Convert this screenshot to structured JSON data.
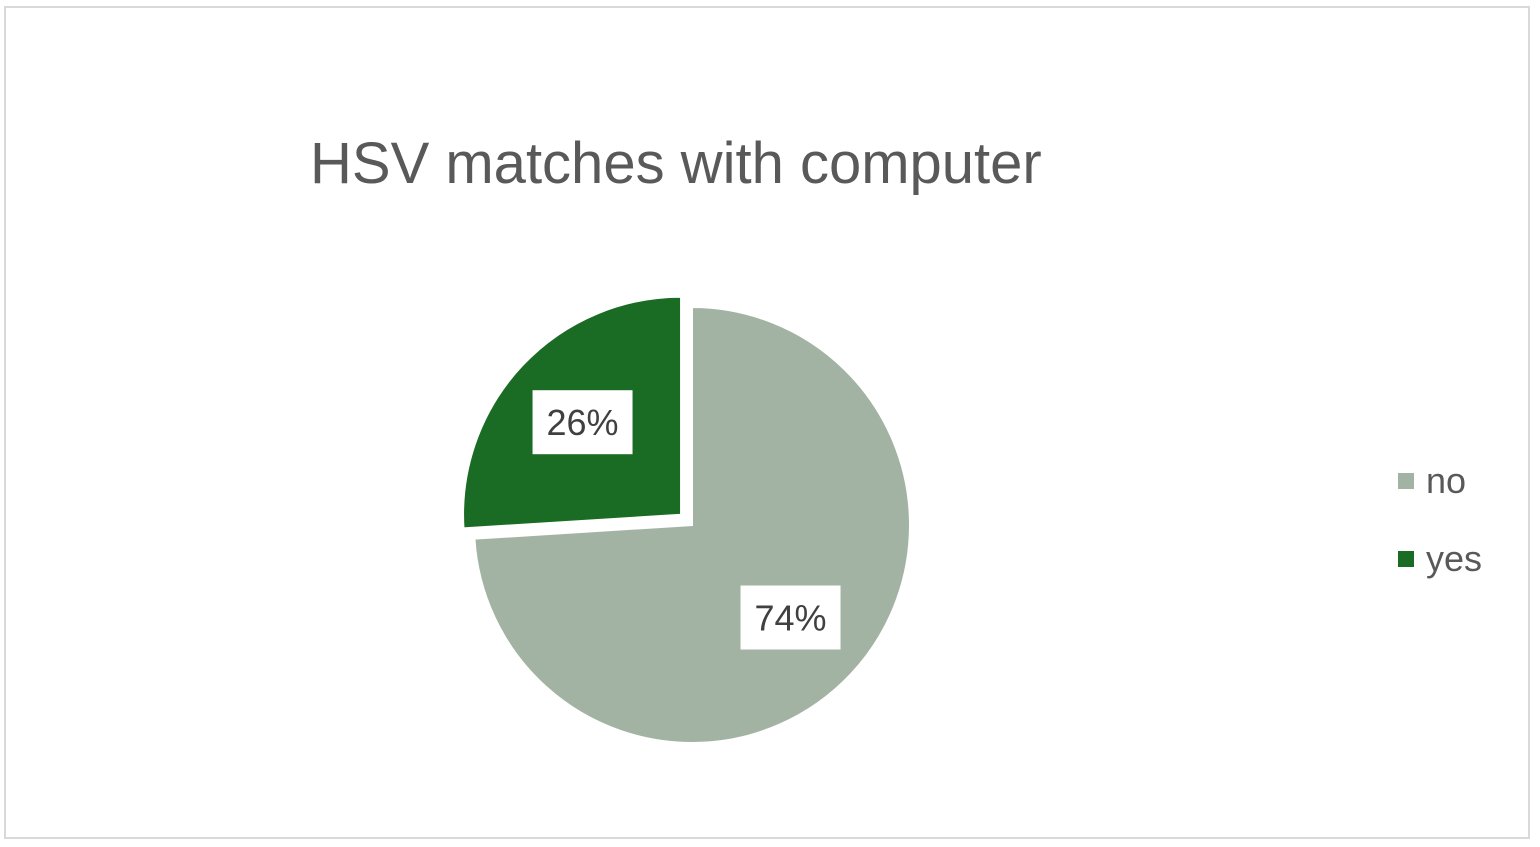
{
  "chart_data": {
    "type": "pie",
    "title": "HSV matches with computer",
    "categories": [
      "no",
      "yes"
    ],
    "values": [
      74,
      26
    ],
    "data_labels": [
      "74%",
      "26%"
    ],
    "colors": [
      "#a2b3a3",
      "#1a6b24"
    ],
    "exploded_slice": "yes",
    "legend_position": "right"
  }
}
